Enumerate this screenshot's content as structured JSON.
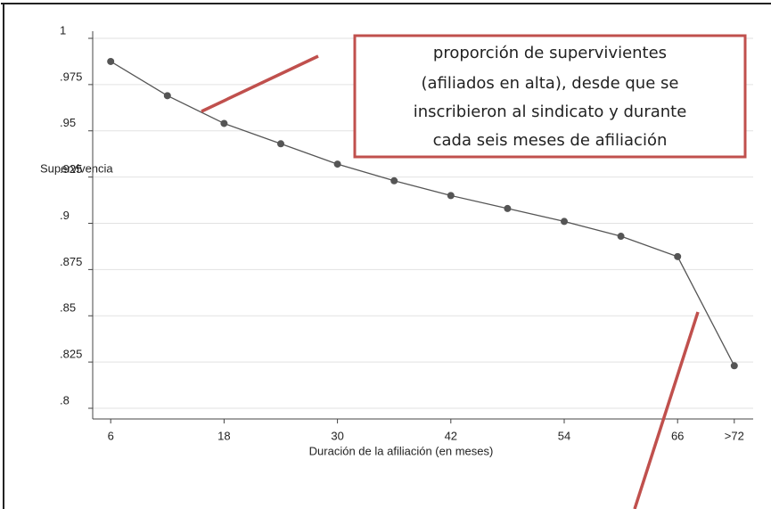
{
  "chart_data": {
    "type": "line",
    "y_label": "Supervivencia",
    "x_label": "Duración de la afiliación (en meses)",
    "annotation": [
      "proporción de supervivientes",
      "(afiliados en alta), desde que se",
      "inscribieron al sindicato y durante",
      "cada seis meses de afiliación"
    ],
    "x": [
      6,
      12,
      18,
      24,
      30,
      36,
      42,
      48,
      54,
      60,
      66,
      72
    ],
    "series": [
      {
        "name": "Supervivencia",
        "color": "#555555",
        "values": [
          0.9875,
          0.969,
          0.954,
          0.943,
          0.932,
          0.923,
          0.915,
          0.908,
          0.901,
          0.893,
          0.882,
          0.823
        ]
      }
    ],
    "xlim": [
      4,
      74
    ],
    "xticks": [
      6,
      18,
      30,
      42,
      54,
      66,
      {
        "value": 72,
        "label": ">72"
      }
    ],
    "ylim": [
      0.8,
      1
    ],
    "yticks": [
      {
        "value": 0.8,
        "label": ".8"
      },
      {
        "value": 0.825,
        "label": ".825"
      },
      {
        "value": 0.85,
        "label": ".85"
      },
      {
        "value": 0.875,
        "label": ".875"
      },
      {
        "value": 0.9,
        "label": ".9"
      },
      {
        "value": 0.925,
        "label": ".925"
      },
      {
        "value": 0.95,
        "label": ".95"
      },
      {
        "value": 0.975,
        "label": ".975"
      },
      1
    ],
    "grid": true
  }
}
